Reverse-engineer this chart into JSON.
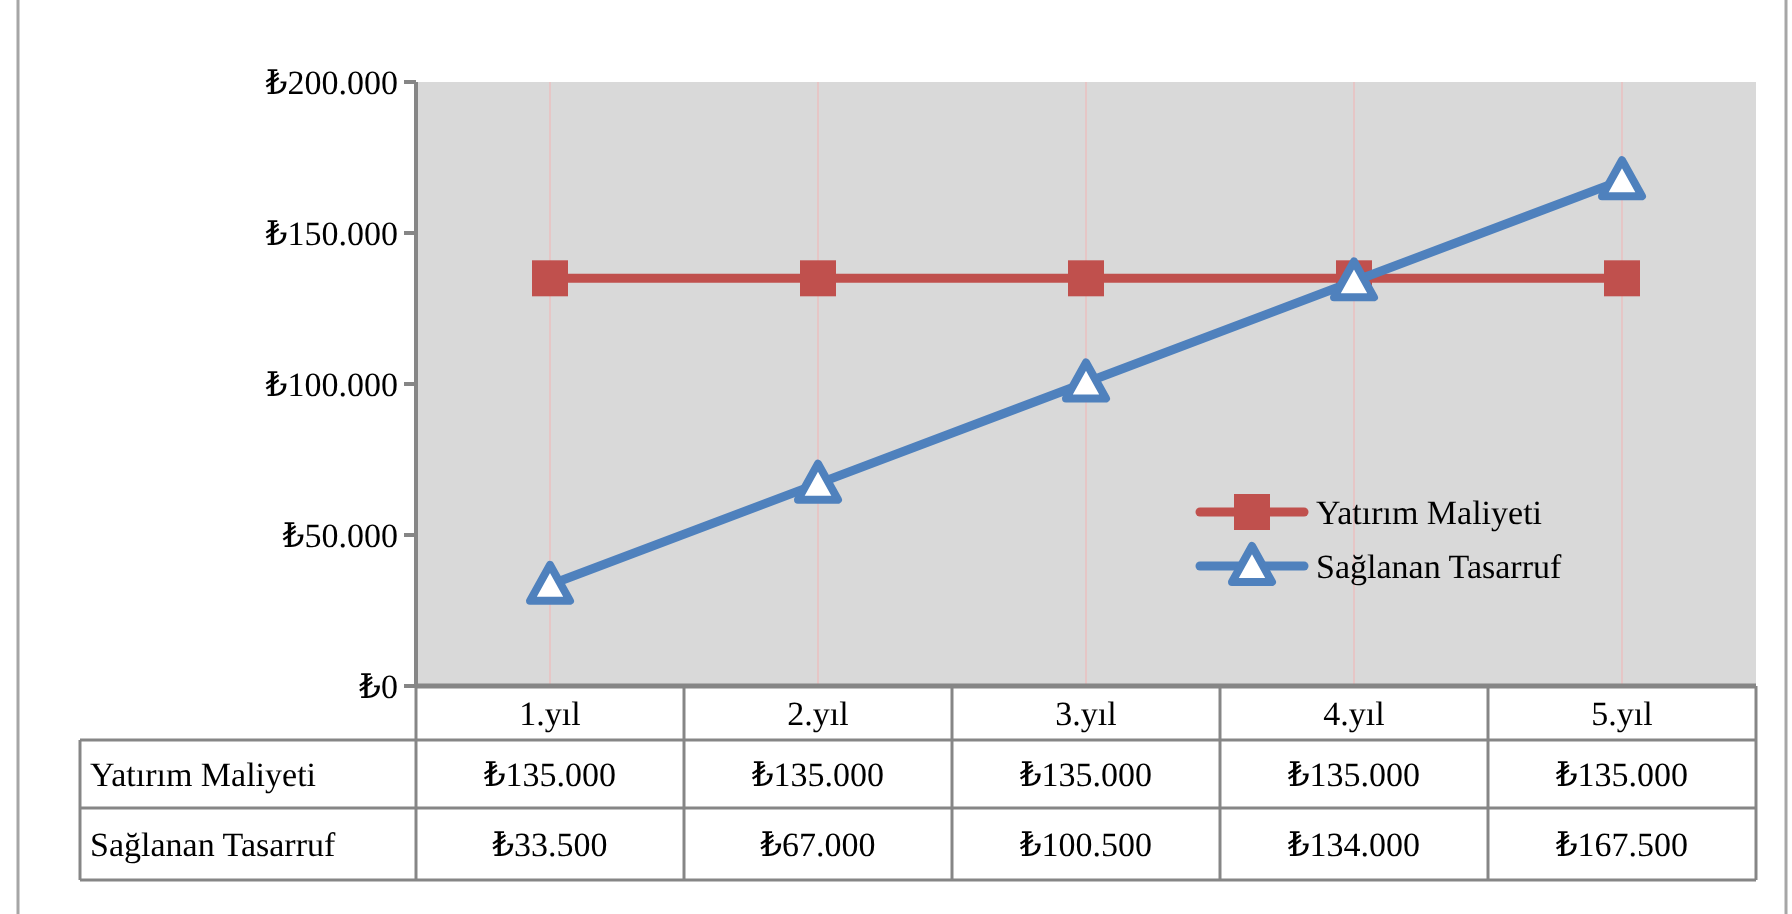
{
  "chart_data": {
    "type": "line",
    "categories": [
      "1.yıl",
      "2.yıl",
      "3.yıl",
      "4.yıl",
      "5.yıl"
    ],
    "series": [
      {
        "name": "Yatırım Maliyeti",
        "color": "#c0504d",
        "marker": "square",
        "values": [
          135000,
          135000,
          135000,
          135000,
          135000
        ],
        "value_labels": [
          "₺135.000",
          "₺135.000",
          "₺135.000",
          "₺135.000",
          "₺135.000"
        ]
      },
      {
        "name": "Sağlanan Tasarruf",
        "color": "#4f81bd",
        "marker": "triangle",
        "values": [
          33500,
          67000,
          100500,
          134000,
          167500
        ],
        "value_labels": [
          "₺33.500",
          "₺67.000",
          "₺100.500",
          "₺134.000",
          "₺167.500"
        ]
      }
    ],
    "ylim": [
      0,
      200000
    ],
    "yticks": [
      {
        "value": 0,
        "label": "₺0"
      },
      {
        "value": 50000,
        "label": "₺50.000"
      },
      {
        "value": 100000,
        "label": "₺100.000"
      },
      {
        "value": 150000,
        "label": "₺150.000"
      },
      {
        "value": 200000,
        "label": "₺200.000"
      }
    ],
    "grid": "x",
    "legend": "right",
    "line_style": "solid"
  }
}
